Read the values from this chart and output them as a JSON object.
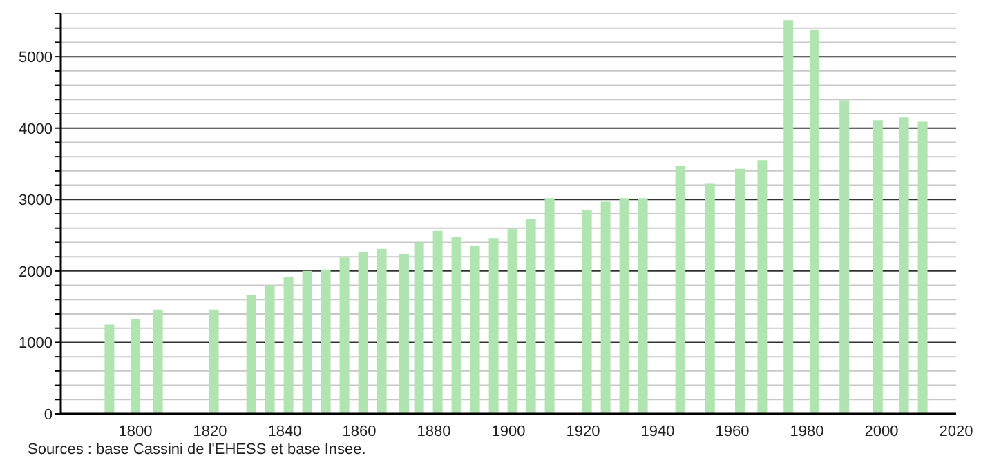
{
  "chart_data": {
    "type": "bar",
    "x": [
      1793,
      1800,
      1806,
      1821,
      1831,
      1836,
      1841,
      1846,
      1851,
      1856,
      1861,
      1866,
      1872,
      1876,
      1881,
      1886,
      1891,
      1896,
      1901,
      1906,
      1911,
      1921,
      1926,
      1931,
      1936,
      1946,
      1954,
      1962,
      1968,
      1975,
      1982,
      1990,
      1999,
      2006,
      2011
    ],
    "values": [
      1250,
      1330,
      1460,
      1460,
      1670,
      1800,
      1920,
      2000,
      2020,
      2190,
      2260,
      2310,
      2240,
      2400,
      2560,
      2480,
      2350,
      2460,
      2590,
      2730,
      3020,
      2850,
      2970,
      3020,
      3020,
      3470,
      3220,
      3430,
      3550,
      5510,
      5370,
      4390,
      4110,
      4150,
      4090
    ],
    "color": "#b0e4b0",
    "xlim": [
      1780,
      2020
    ],
    "xticks": [
      1800,
      1820,
      1840,
      1860,
      1880,
      1900,
      1920,
      1940,
      1960,
      1980,
      2000,
      2020
    ],
    "ylim": [
      0,
      5600
    ],
    "yticks": [
      0,
      {
        "value": 200,
        "label": null
      },
      {
        "value": 400,
        "label": null
      },
      {
        "value": 600,
        "label": null
      },
      {
        "value": 800,
        "label": null
      },
      1000,
      {
        "value": 1200,
        "label": null
      },
      {
        "value": 1400,
        "label": null
      },
      {
        "value": 1600,
        "label": null
      },
      {
        "value": 1800,
        "label": null
      },
      2000,
      {
        "value": 2200,
        "label": null
      },
      {
        "value": 2400,
        "label": null
      },
      {
        "value": 2600,
        "label": null
      },
      {
        "value": 2800,
        "label": null
      },
      3000,
      {
        "value": 3200,
        "label": null
      },
      {
        "value": 3400,
        "label": null
      },
      {
        "value": 3600,
        "label": null
      },
      {
        "value": 3800,
        "label": null
      },
      4000,
      {
        "value": 4200,
        "label": null
      },
      {
        "value": 4400,
        "label": null
      },
      {
        "value": 4600,
        "label": null
      },
      {
        "value": 4800,
        "label": null
      },
      5000,
      {
        "value": 5200,
        "label": null
      },
      {
        "value": 5400,
        "label": null
      },
      {
        "value": 5600,
        "label": null
      }
    ],
    "grid": "y",
    "legend": false,
    "annotations": [
      "Sources : base Cassini de l'EHESS et base Insee."
    ]
  }
}
